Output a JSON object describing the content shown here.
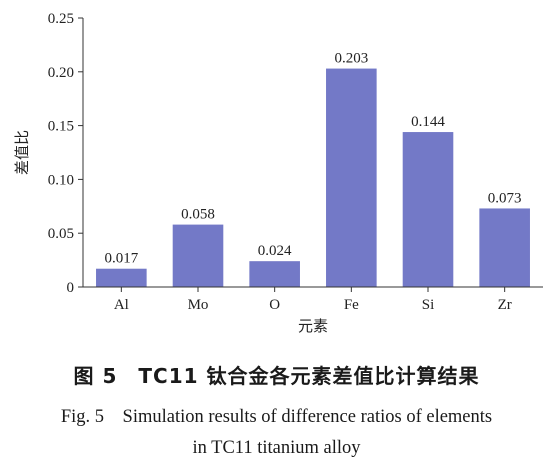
{
  "chart_data": {
    "type": "bar",
    "categories": [
      "Al",
      "Mo",
      "O",
      "Fe",
      "Si",
      "Zr"
    ],
    "values": [
      0.017,
      0.058,
      0.024,
      0.203,
      0.144,
      0.073
    ],
    "data_labels": [
      "0.017",
      "0.058",
      "0.024",
      "0.203",
      "0.144",
      "0.073"
    ],
    "title": "",
    "xlabel": "元素",
    "ylabel": "差值比",
    "ylim": [
      0,
      0.25
    ],
    "yticks": [
      0,
      0.05,
      0.1,
      0.15,
      0.2,
      0.25
    ],
    "ytick_labels": [
      "0",
      "0.05",
      "0.10",
      "0.15",
      "0.20",
      "0.25"
    ],
    "grid": false,
    "bar_color": "#7379c7"
  },
  "caption": {
    "cn": "图 5　TC11 钛合金各元素差值比计算结果",
    "en_line1": "Fig. 5　Simulation results of difference ratios of elements",
    "en_line2": "in TC11 titanium alloy"
  }
}
